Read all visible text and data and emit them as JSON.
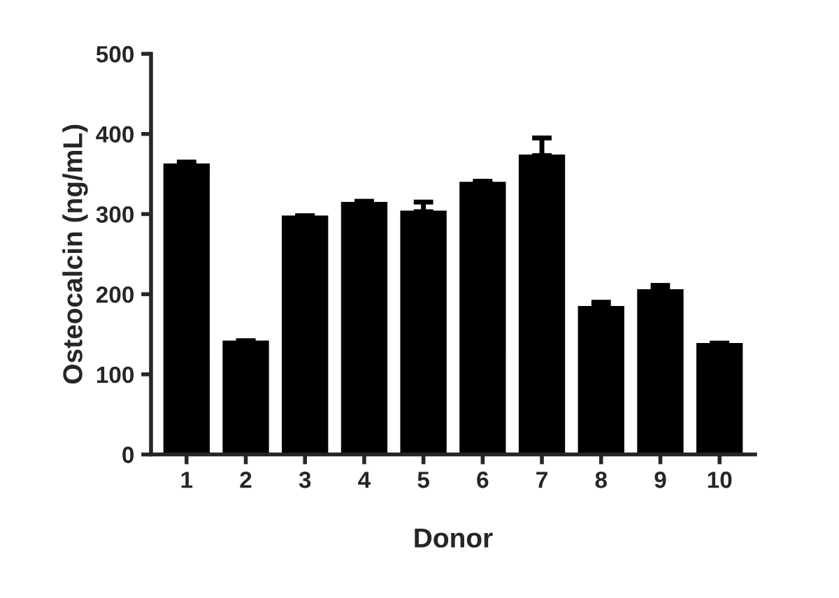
{
  "chart_data": {
    "type": "bar",
    "xlabel": "Donor",
    "ylabel": "Osteocalcin (ng/mL)",
    "categories": [
      "1",
      "2",
      "3",
      "4",
      "5",
      "6",
      "7",
      "8",
      "9",
      "10"
    ],
    "values": [
      362,
      141,
      297,
      314,
      303,
      339,
      373,
      184,
      205,
      138
    ],
    "errors": [
      3,
      1,
      1,
      2,
      12,
      2,
      22,
      6,
      6,
      1
    ],
    "color": "#000000",
    "ylim": [
      0,
      500
    ],
    "yticks": [
      0,
      100,
      200,
      300,
      400,
      500
    ],
    "grid": false
  }
}
